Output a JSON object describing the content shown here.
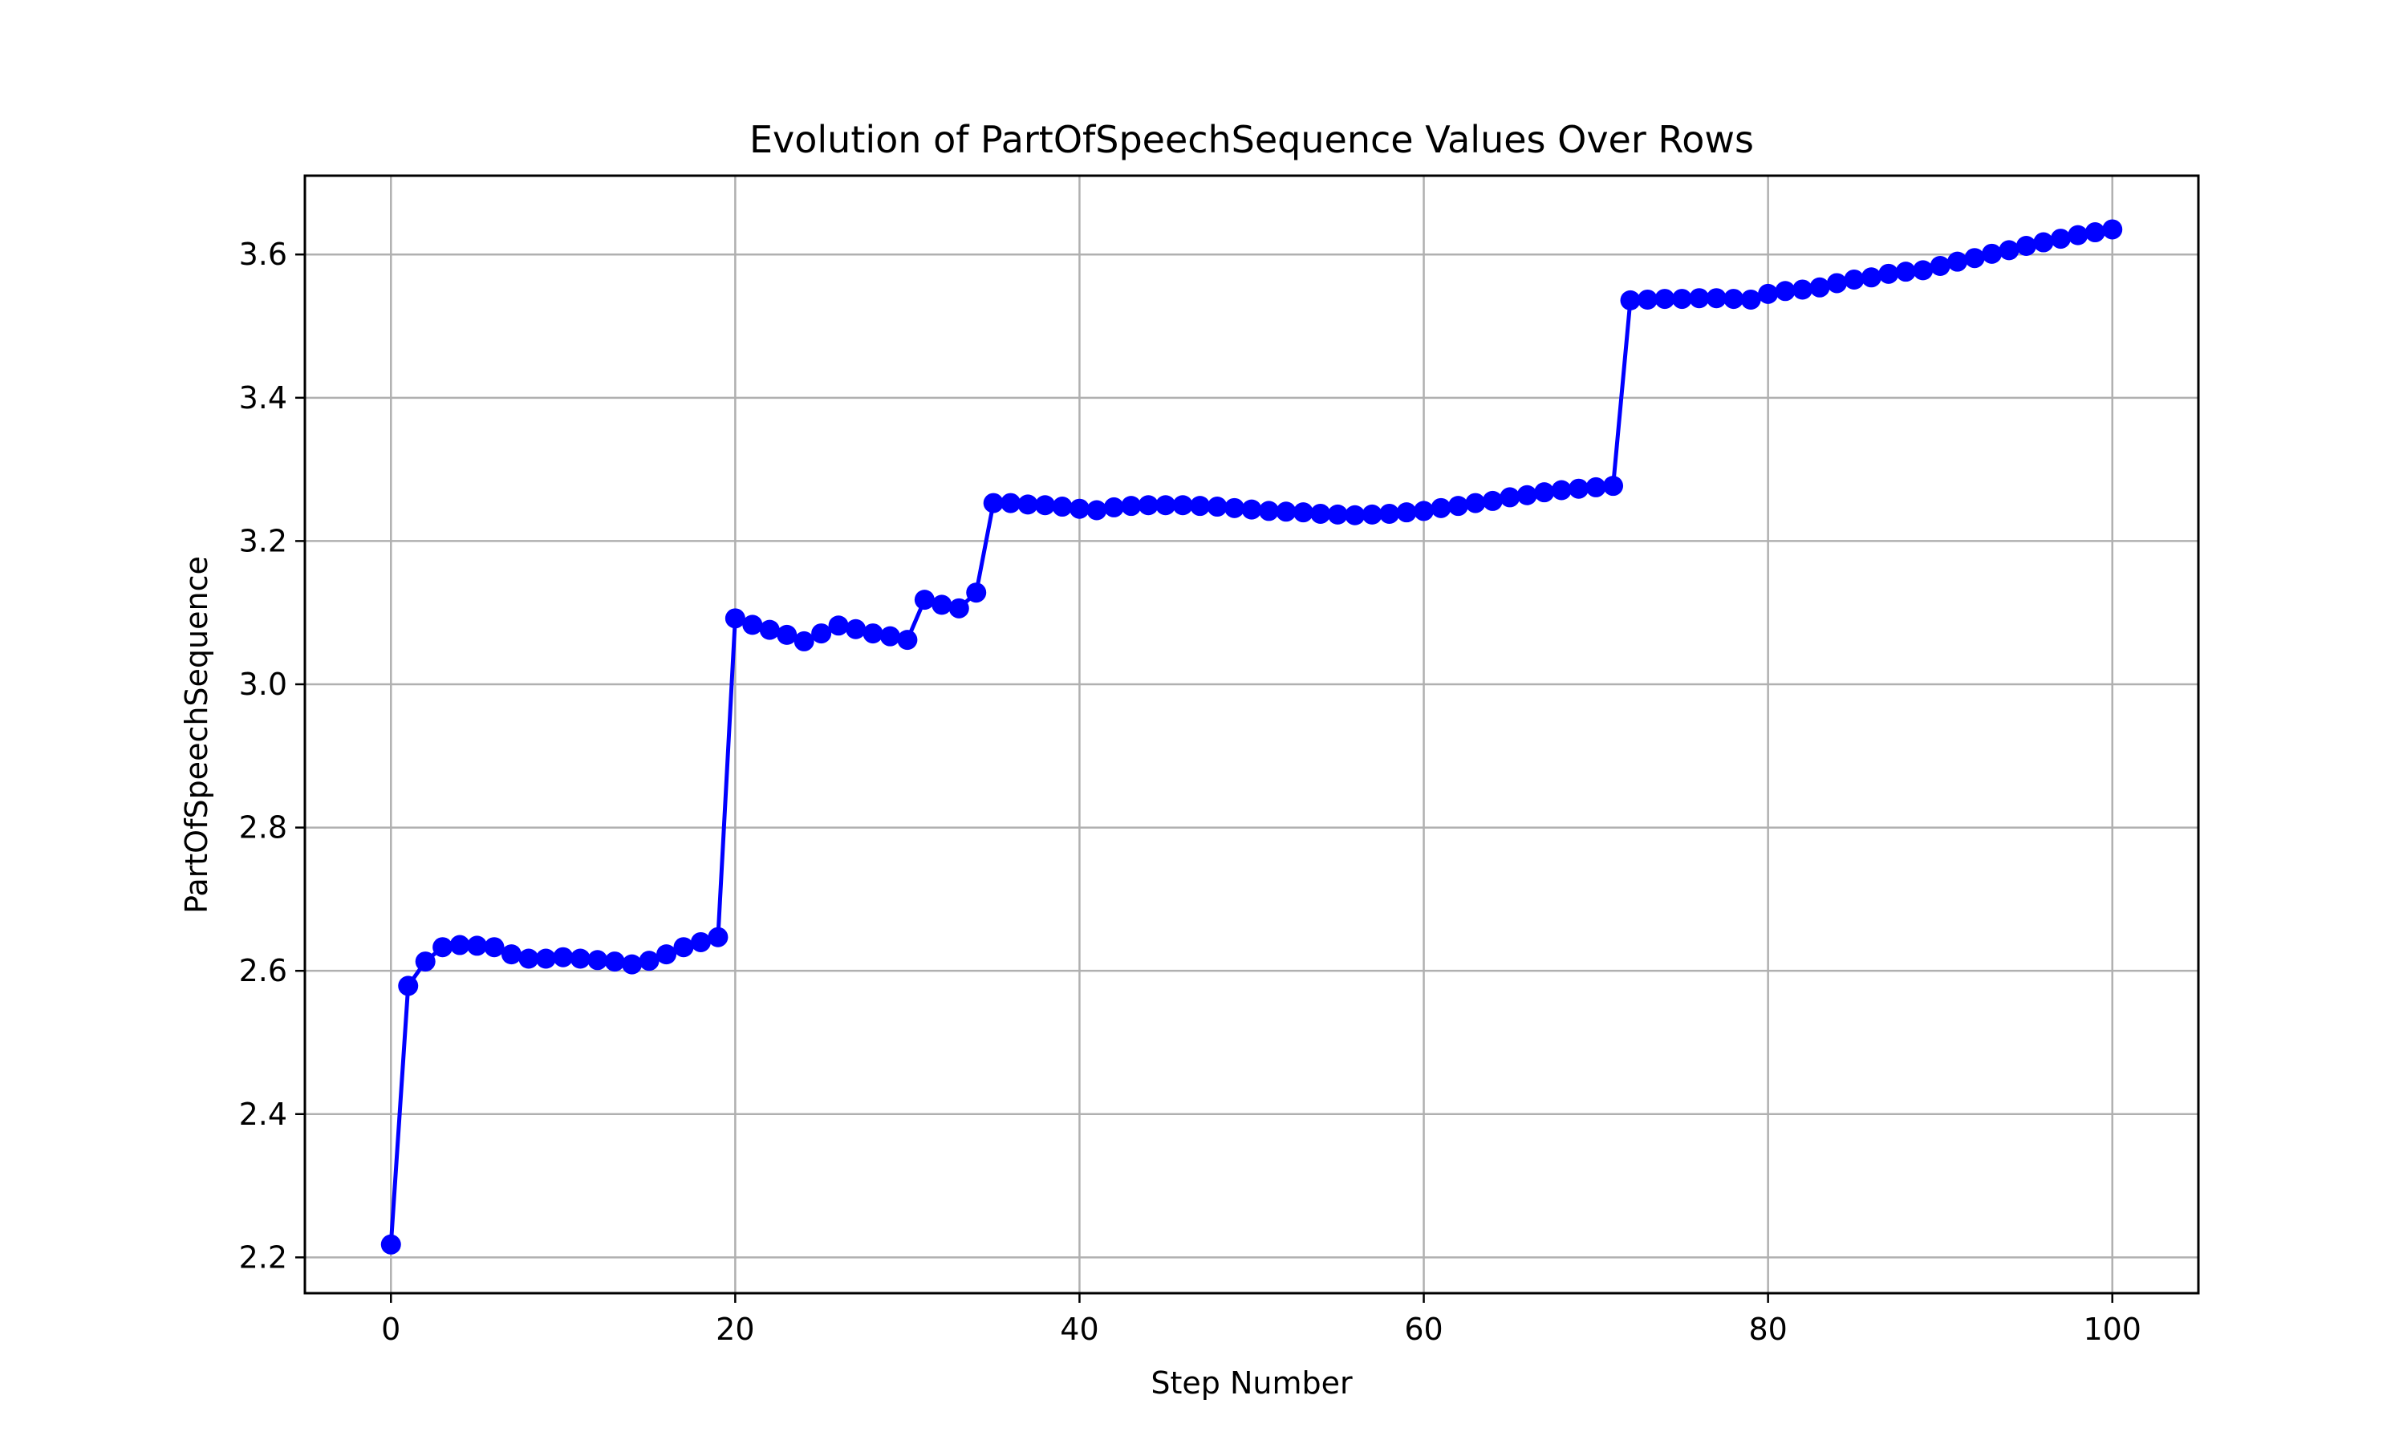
{
  "chart_data": {
    "type": "line",
    "title": "Evolution of PartOfSpeechSequence Values Over Rows",
    "xlabel": "Step Number",
    "ylabel": "PartOfSpeechSequence",
    "xlim": [
      -5,
      105
    ],
    "ylim": [
      2.15,
      3.71
    ],
    "xticks": [
      0,
      20,
      40,
      60,
      80,
      100
    ],
    "xtick_labels": [
      "0",
      "20",
      "40",
      "60",
      "80",
      "100"
    ],
    "yticks": [
      2.2,
      2.4,
      2.6,
      2.8,
      3.0,
      3.2,
      3.4,
      3.6
    ],
    "ytick_labels": [
      "2.2",
      "2.4",
      "2.6",
      "2.8",
      "3.0",
      "3.2",
      "3.4",
      "3.6"
    ],
    "grid": true,
    "legend": false,
    "line_color": "#0000ff",
    "marker": "circle",
    "series": [
      {
        "x": [
          0,
          1,
          2,
          3,
          4,
          5,
          6,
          7,
          8,
          9,
          10,
          11,
          12,
          13,
          14,
          15,
          16,
          17,
          18,
          19,
          20,
          21,
          22,
          23,
          24,
          25,
          26,
          27,
          28,
          29,
          30,
          31,
          32,
          33,
          34,
          35,
          36,
          37,
          38,
          39,
          40,
          41,
          42,
          43,
          44,
          45,
          46,
          47,
          48,
          49,
          50,
          51,
          52,
          53,
          54,
          55,
          56,
          57,
          58,
          59,
          60,
          61,
          62,
          63,
          64,
          65,
          66,
          67,
          68,
          69,
          70,
          71,
          72,
          73,
          74,
          75,
          76,
          77,
          78,
          79,
          80,
          81,
          82,
          83,
          84,
          85,
          86,
          87,
          88,
          89,
          90,
          91,
          92,
          93,
          94,
          95,
          96,
          97,
          98,
          99,
          100
        ],
        "y": [
          2.218,
          2.579,
          2.613,
          2.633,
          2.636,
          2.635,
          2.633,
          2.623,
          2.617,
          2.617,
          2.619,
          2.617,
          2.615,
          2.613,
          2.609,
          2.614,
          2.623,
          2.633,
          2.64,
          2.647,
          3.092,
          3.083,
          3.076,
          3.069,
          3.06,
          3.071,
          3.082,
          3.077,
          3.071,
          3.067,
          3.062,
          3.118,
          3.111,
          3.106,
          3.128,
          3.253,
          3.253,
          3.251,
          3.25,
          3.248,
          3.245,
          3.243,
          3.247,
          3.249,
          3.25,
          3.25,
          3.25,
          3.249,
          3.248,
          3.246,
          3.244,
          3.242,
          3.241,
          3.24,
          3.238,
          3.237,
          3.236,
          3.237,
          3.238,
          3.24,
          3.242,
          3.246,
          3.249,
          3.253,
          3.256,
          3.261,
          3.264,
          3.268,
          3.271,
          3.273,
          3.275,
          3.277,
          3.536,
          3.537,
          3.538,
          3.538,
          3.539,
          3.539,
          3.538,
          3.537,
          3.545,
          3.549,
          3.551,
          3.554,
          3.56,
          3.565,
          3.568,
          3.573,
          3.576,
          3.578,
          3.584,
          3.59,
          3.595,
          3.601,
          3.606,
          3.612,
          3.617,
          3.622,
          3.627,
          3.631,
          3.635
        ]
      }
    ]
  }
}
